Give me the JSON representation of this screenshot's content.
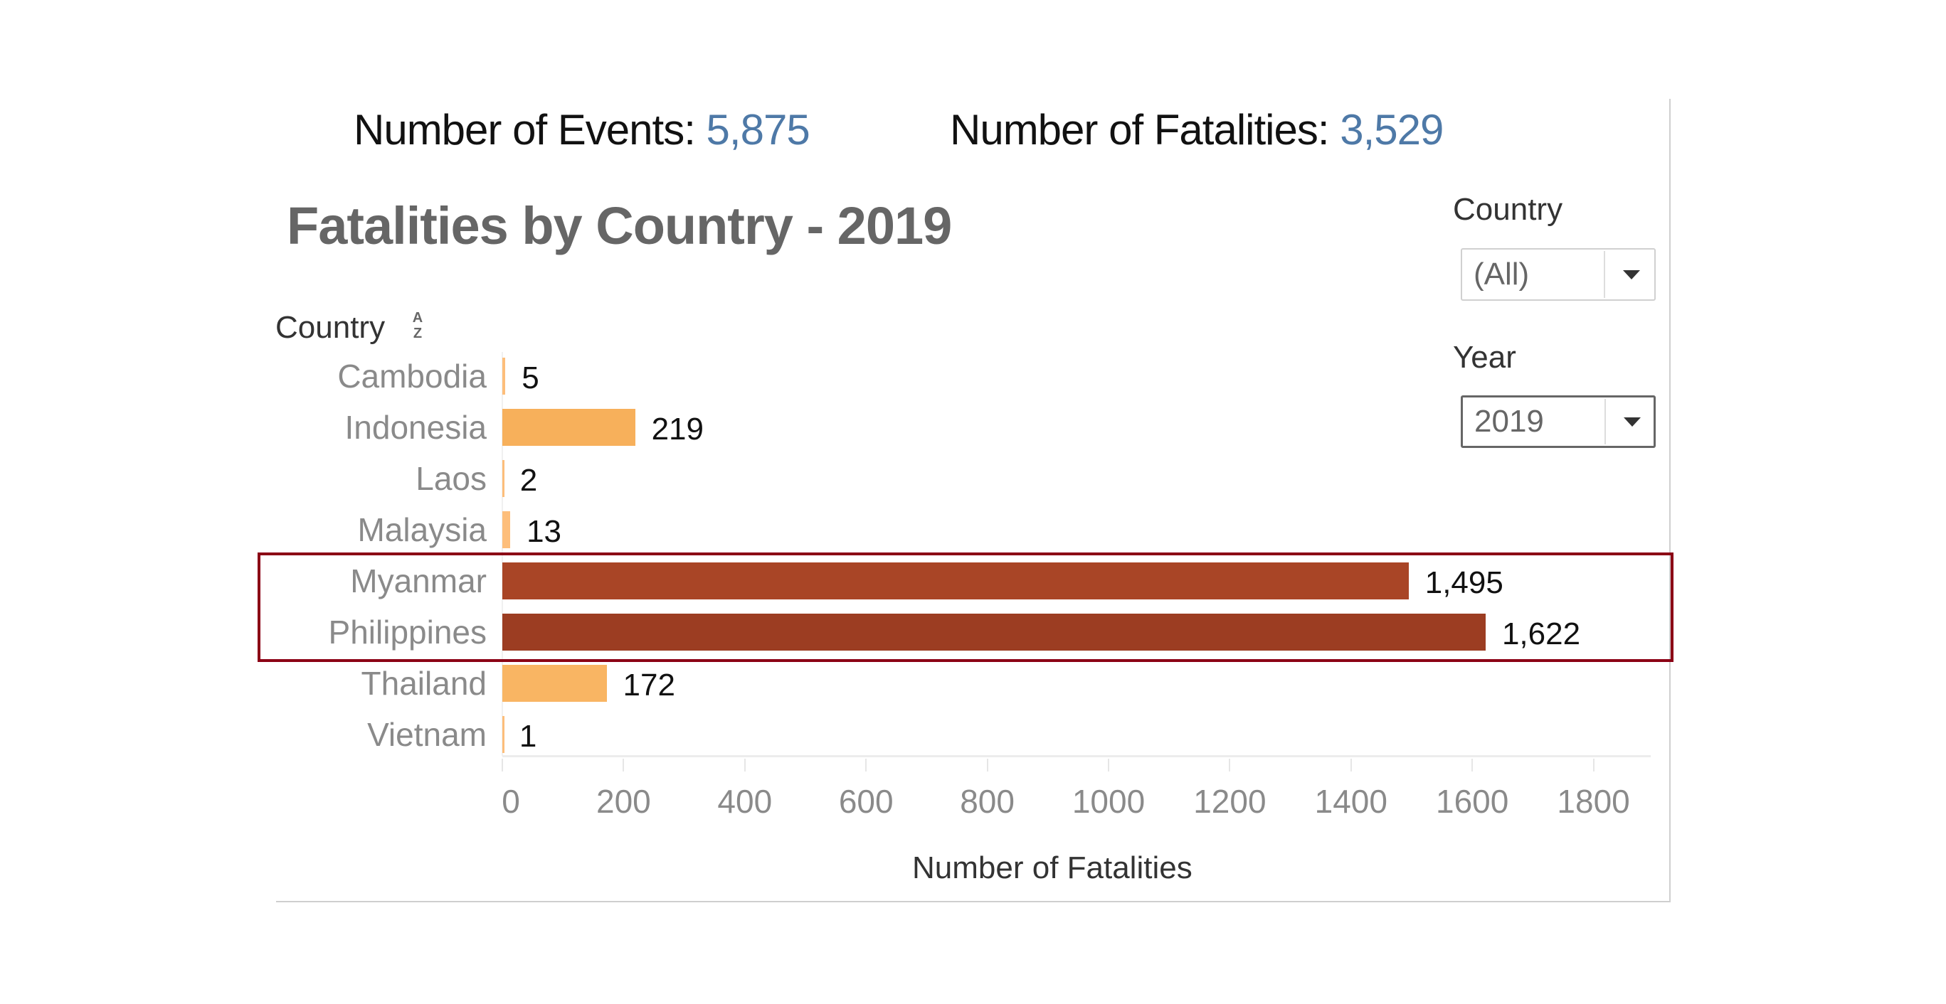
{
  "kpis": {
    "events_label": "Number of Events:",
    "events_value": "5,875",
    "fatalities_label": "Number of Fatalities:",
    "fatalities_value": "3,529"
  },
  "filters": {
    "country": {
      "label": "Country",
      "selected": "(All)"
    },
    "year": {
      "label": "Year",
      "selected": "2019"
    }
  },
  "sort_icon": {
    "name": "sort-alpha-icon",
    "top": "A",
    "bottom": "Z"
  },
  "colors": {
    "bar_default": "#F7B05B",
    "bar_small": "#FDBE7B",
    "bar_myanmar": "#A94526",
    "bar_philippines": "#9C3D22",
    "highlight_border": "#8B0015",
    "kpi_value": "#4E79A7"
  },
  "chart_data": {
    "type": "bar",
    "orientation": "horizontal",
    "title": "Fatalities by Country - 2019",
    "ylabel": "Country",
    "xlabel": "Number of Fatalities",
    "categories": [
      "Cambodia",
      "Indonesia",
      "Laos",
      "Malaysia",
      "Myanmar",
      "Philippines",
      "Thailand",
      "Vietnam"
    ],
    "values": [
      5,
      219,
      2,
      13,
      1495,
      1622,
      172,
      1
    ],
    "value_labels": [
      "5",
      "219",
      "2",
      "13",
      "1,495",
      "1,622",
      "172",
      "1"
    ],
    "bar_colors": [
      "#FDBE7B",
      "#F7B05B",
      "#FDBE7B",
      "#FDBE7B",
      "#A94526",
      "#9C3D22",
      "#F9B563",
      "#FDBE7B"
    ],
    "xlim": [
      0,
      1900
    ],
    "xticks": [
      0,
      200,
      400,
      600,
      800,
      1000,
      1200,
      1400,
      1600,
      1800
    ],
    "xtick_labels": [
      "0",
      "200",
      "400",
      "600",
      "800",
      "1000",
      "1200",
      "1400",
      "1600",
      "1800"
    ],
    "highlighted": [
      "Myanmar",
      "Philippines"
    ],
    "grid": false,
    "legend": "none"
  }
}
